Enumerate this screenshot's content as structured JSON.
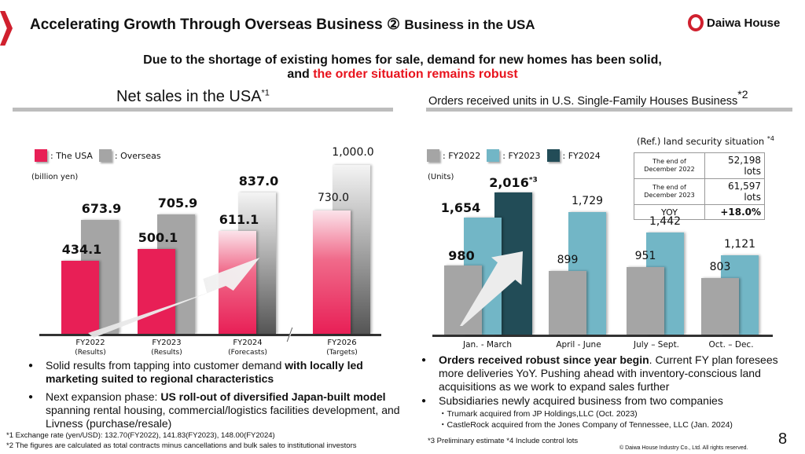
{
  "header": {
    "title": "Accelerating Growth Through Overseas Business ② ",
    "title_suffix": "Business in the USA",
    "logo_text": "Daiwa House"
  },
  "headline": {
    "line1": "Due to the shortage of existing homes for sale, demand for new homes has been solid,",
    "line2_prefix": "and ",
    "line2_highlight": "the order situation remains robust"
  },
  "colors": {
    "usa": "#e81f56",
    "overseas": "#a5a5a5",
    "fy2022": "#a5a5a5",
    "fy2023": "#72b6c6",
    "fy2024": "#224c57",
    "accent": "#d0202e"
  },
  "chart_data": [
    {
      "type": "bar",
      "title": "Net sales in the USA",
      "title_note": "*1",
      "ylabel": "(billion yen)",
      "categories": [
        "FY2022",
        "FY2023",
        "FY2024",
        "FY2026"
      ],
      "category_sub": [
        "(Results)",
        "(Results)",
        "(Forecasts)",
        "(Targets)"
      ],
      "series": [
        {
          "name": ": The USA",
          "values": [
            434.1,
            500.1,
            611.1,
            730.0
          ]
        },
        {
          "name": ": Overseas",
          "values": [
            673.9,
            705.9,
            837.0,
            1000.0
          ]
        }
      ],
      "labels_usa": [
        "434.1",
        "500.1",
        "611.1",
        "730.0"
      ],
      "labels_overseas": [
        "673.9",
        "705.9",
        "837.0",
        "1,000.0"
      ],
      "axis_break": "between FY2024 and FY2026",
      "legend": "top-left"
    },
    {
      "type": "bar",
      "title": "Orders received units in U.S. Single-Family Houses Business",
      "title_note": "*2",
      "ylabel": "(Units)",
      "categories": [
        "Jan. - March",
        "April - June",
        "July – Sept.",
        "Oct. – Dec."
      ],
      "series": [
        {
          "name": ": FY2022",
          "values": [
            980,
            899,
            951,
            803
          ],
          "labels": [
            "980",
            "899",
            "951",
            "803"
          ]
        },
        {
          "name": ": FY2023",
          "values": [
            1654,
            1729,
            1442,
            1121
          ],
          "labels": [
            "1,654",
            "1,729",
            "1,442",
            "1,121"
          ]
        },
        {
          "name": ": FY2024",
          "values": [
            2016,
            null,
            null,
            null
          ],
          "labels": [
            "2,016",
            null,
            null,
            null
          ]
        }
      ],
      "fy2024_note": "*3",
      "legend": "top-left"
    }
  ],
  "land": {
    "title": "(Ref.) land security situation ",
    "note": "*4",
    "rows": [
      {
        "k": "The end of December 2022",
        "v": "52,198 lots"
      },
      {
        "k": "The end of December 2023",
        "v": "61,597 lots"
      },
      {
        "k": "YOY",
        "v": "+18.0%"
      }
    ]
  },
  "left_bullets": {
    "b1_plain": "Solid results from tapping into customer demand ",
    "b1_bold": "with locally led marketing suited to regional characteristics",
    "b2_plain": "Next expansion phase: ",
    "b2_bold": "US roll-out of diversified Japan-built model",
    "b2_rest": " spanning rental housing, commercial/logistics facilities development, and Livness (purchase/resale)"
  },
  "right_bullets": {
    "b1_bold": "Orders received robust since year begin",
    "b1_rest": ". Current FY plan foresees more deliveries YoY. Pushing ahead with inventory-conscious land acquisitions as we work to expand sales further",
    "b2": "Subsidiaries newly acquired business from two companies",
    "s1": "・Trumark acquired from JP Holdings,LLC  (Oct. 2023)",
    "s2": "・CastleRock acquired from the Jones Company of Tennessee, LLC  (Jan. 2024)"
  },
  "footnotes": {
    "f1": "*1 Exchange rate (yen/USD): 132.70(FY2022), 141.83(FY2023), 148.00(FY2024)",
    "f2": "*2 The figures are calculated as total contracts minus cancellations and bulk sales to institutional investors",
    "f3": "*3 Preliminary estimate *4 Include control lots",
    "copyright": "© Daiwa House Industry Co., Ltd. All rights reserved.",
    "page": "8"
  }
}
